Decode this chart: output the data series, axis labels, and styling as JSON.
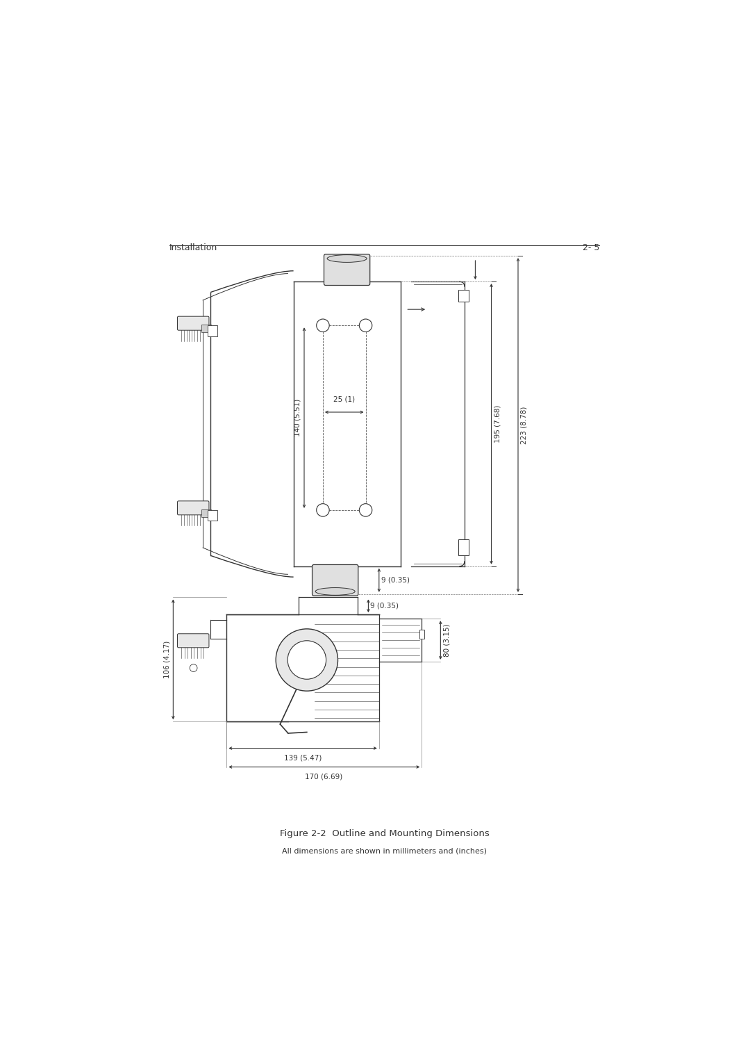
{
  "title": "Figure 2-2  Outline and Mounting Dimensions",
  "subtitle": "All dimensions are shown in millimeters and (inches)",
  "header_left": "Installation",
  "header_right": "2- 5",
  "bg_color": "#ffffff",
  "lc": "#333333",
  "dc": "#333333",
  "fs_header": 9,
  "fs_dim": 7.5,
  "fs_title": 9.5,
  "fs_subtitle": 8
}
